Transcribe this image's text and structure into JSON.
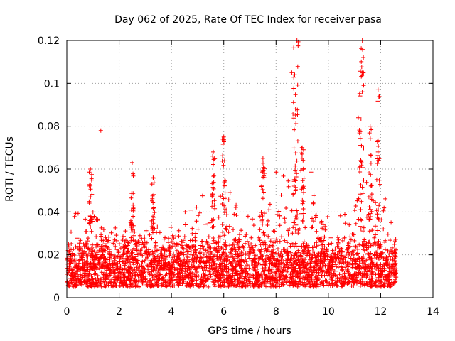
{
  "chart_data": {
    "type": "scatter",
    "title": "Day 062 of 2025, Rate Of TEC Index for receiver pasa",
    "xlabel": "GPS time / hours",
    "ylabel": "ROTI / TECUs",
    "xlim": [
      0,
      14
    ],
    "ylim": [
      0,
      0.12
    ],
    "x_ticks": [
      0,
      2,
      4,
      6,
      8,
      10,
      12,
      14
    ],
    "y_ticks": [
      0,
      0.02,
      0.04,
      0.06,
      0.08,
      0.1,
      0.12
    ],
    "x_tick_labels": [
      "0",
      "2",
      "4",
      "6",
      "8",
      "10",
      "12",
      "14"
    ],
    "y_tick_labels": [
      "0",
      "0.02",
      "0.04",
      "0.06",
      "0.08",
      "0.1",
      "0.12"
    ],
    "grid": true,
    "marker": "+",
    "color": "#ff0000",
    "data_range_hours": [
      0,
      12.6
    ],
    "typical_band": [
      0.005,
      0.03
    ],
    "notable_points": [
      {
        "x": 1.3,
        "y": 0.078
      },
      {
        "x": 6.0,
        "y": 0.075
      },
      {
        "x": 8.8,
        "y": 0.12
      },
      {
        "x": 8.6,
        "y": 0.105
      },
      {
        "x": 11.3,
        "y": 0.12
      },
      {
        "x": 11.3,
        "y": 0.105
      },
      {
        "x": 11.9,
        "y": 0.097
      },
      {
        "x": 0.9,
        "y": 0.06
      },
      {
        "x": 2.5,
        "y": 0.063
      },
      {
        "x": 3.3,
        "y": 0.056
      },
      {
        "x": 5.6,
        "y": 0.068
      },
      {
        "x": 7.5,
        "y": 0.065
      },
      {
        "x": 9.0,
        "y": 0.07
      },
      {
        "x": 11.6,
        "y": 0.08
      },
      {
        "x": 12.4,
        "y": 0.035
      }
    ]
  }
}
